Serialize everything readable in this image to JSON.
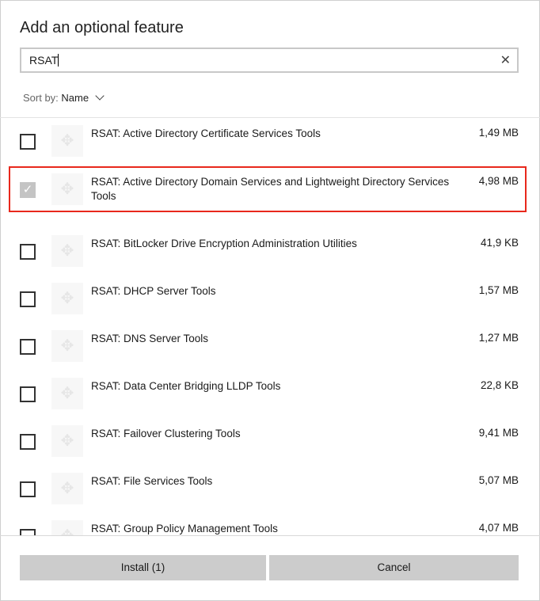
{
  "title": "Add an optional feature",
  "search": {
    "value": "RSAT"
  },
  "sort": {
    "label": "Sort by:",
    "value": "Name"
  },
  "items": [
    {
      "name": "RSAT: Active Directory Certificate Services Tools",
      "size": "1,49 MB",
      "checked": false
    },
    {
      "name": "RSAT: Active Directory Domain Services and Lightweight Directory Services Tools",
      "size": "4,98 MB",
      "checked": true,
      "highlighted": true
    },
    {
      "name": "RSAT: BitLocker Drive Encryption Administration Utilities",
      "size": "41,9 KB",
      "checked": false
    },
    {
      "name": "RSAT: DHCP Server Tools",
      "size": "1,57 MB",
      "checked": false
    },
    {
      "name": "RSAT: DNS Server Tools",
      "size": "1,27 MB",
      "checked": false
    },
    {
      "name": "RSAT: Data Center Bridging LLDP Tools",
      "size": "22,8 KB",
      "checked": false
    },
    {
      "name": "RSAT: Failover Clustering Tools",
      "size": "9,41 MB",
      "checked": false
    },
    {
      "name": "RSAT: File Services Tools",
      "size": "5,07 MB",
      "checked": false
    },
    {
      "name": "RSAT: Group Policy Management Tools",
      "size": "4,07 MB",
      "checked": false
    }
  ],
  "buttons": {
    "install": "Install (1)",
    "cancel": "Cancel"
  },
  "colors": {
    "highlight": "#e8281c",
    "button": "#cccccc"
  }
}
